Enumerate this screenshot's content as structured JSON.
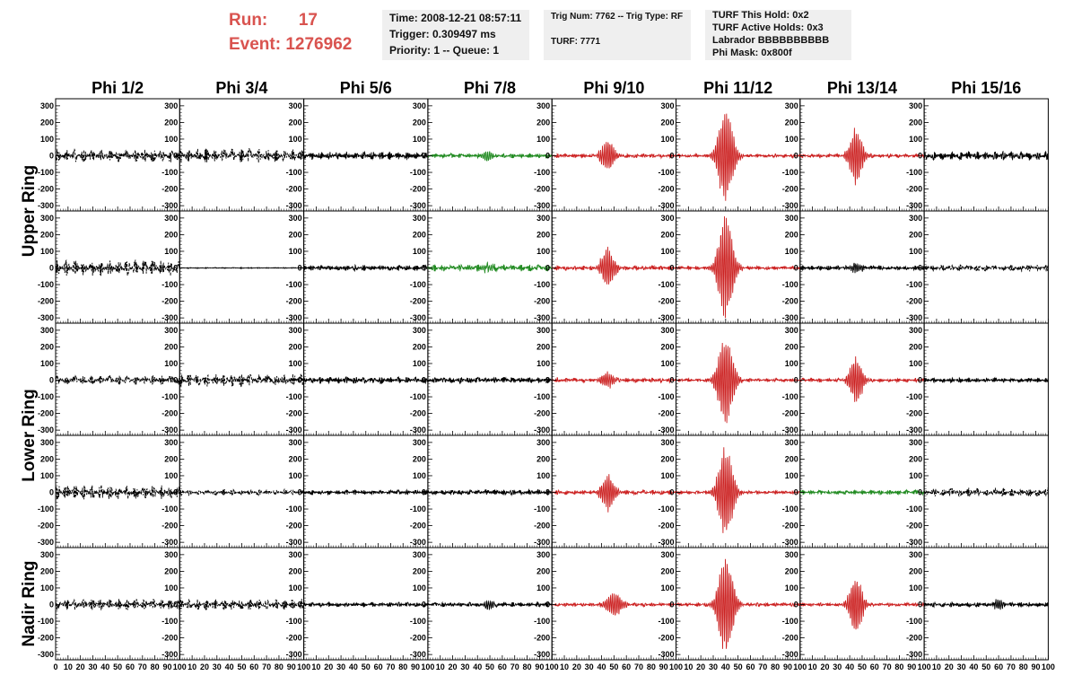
{
  "header": {
    "run_label": "Run:",
    "run_value": "17",
    "event_label": "Event:",
    "event_value": "1276962",
    "time": "Time: 2008-12-21 08:57:11",
    "trigger": "Trigger: 0.309497 ms",
    "priority": "Priority: 1 -- Queue: 1",
    "trig_num": "Trig Num: 7762 -- Trig Type: RF",
    "turf": "TURF: 7771",
    "turf_hold": "TURF This Hold: 0x2",
    "turf_active": "TURF Active Holds: 0x3",
    "labrador": "Labrador BBBBBBBBBB",
    "phi_mask": "Phi Mask: 0x800f"
  },
  "chart_data": {
    "type": "line",
    "columns": [
      "Phi 1/2",
      "Phi 3/4",
      "Phi 5/6",
      "Phi 7/8",
      "Phi 9/10",
      "Phi 11/12",
      "Phi 13/14",
      "Phi 15/16"
    ],
    "rows": [
      "Upper Ring",
      "Upper Ring",
      "Lower Ring",
      "Lower Ring",
      "Nadir Ring"
    ],
    "row_groups": [
      {
        "label": "Upper Ring",
        "rows": [
          0,
          1
        ]
      },
      {
        "label": "Lower Ring",
        "rows": [
          2,
          3
        ]
      },
      {
        "label": "Nadir Ring",
        "rows": [
          4
        ]
      }
    ],
    "xlim": [
      0,
      100
    ],
    "ylim": [
      -310,
      310
    ],
    "y_ticks": [
      -300,
      -200,
      -100,
      0,
      100,
      200,
      300
    ],
    "x_ticks": [
      0,
      10,
      20,
      30,
      40,
      50,
      60,
      70,
      80,
      90,
      100
    ],
    "colors": {
      "normal": "#000000",
      "triggered": "#cc2222",
      "masked": "#228b22"
    },
    "waveforms": [
      [
        {
          "amp": 40,
          "burst": 0,
          "center": 50,
          "width": 25,
          "dashed": true,
          "color": "normal"
        },
        {
          "amp": 45,
          "burst": 0,
          "center": 55,
          "width": 25,
          "dashed": true,
          "color": "normal"
        },
        {
          "amp": 25,
          "burst": 0,
          "center": 50,
          "width": 25,
          "dashed": false,
          "color": "normal"
        },
        {
          "amp": 15,
          "burst": 40,
          "center": 48,
          "width": 4,
          "dashed": false,
          "color": "masked"
        },
        {
          "amp": 15,
          "burst": 100,
          "center": 45,
          "width": 6,
          "dashed": false,
          "color": "triggered"
        },
        {
          "amp": 12,
          "burst": 310,
          "center": 40,
          "width": 7,
          "dashed": false,
          "color": "triggered"
        },
        {
          "amp": 12,
          "burst": 180,
          "center": 45,
          "width": 6,
          "dashed": false,
          "color": "triggered"
        },
        {
          "amp": 28,
          "burst": 0,
          "center": 50,
          "width": 25,
          "dashed": false,
          "color": "normal"
        }
      ],
      [
        {
          "amp": 50,
          "burst": 0,
          "center": 50,
          "width": 25,
          "dashed": true,
          "color": "normal"
        },
        {
          "amp": 3,
          "burst": 0,
          "center": 50,
          "width": 25,
          "dashed": false,
          "color": "normal"
        },
        {
          "amp": 18,
          "burst": 0,
          "center": 50,
          "width": 25,
          "dashed": false,
          "color": "normal"
        },
        {
          "amp": 22,
          "burst": 25,
          "center": 48,
          "width": 6,
          "dashed": false,
          "color": "masked"
        },
        {
          "amp": 15,
          "burst": 120,
          "center": 45,
          "width": 6,
          "dashed": false,
          "color": "triggered"
        },
        {
          "amp": 12,
          "burst": 320,
          "center": 40,
          "width": 7,
          "dashed": false,
          "color": "triggered"
        },
        {
          "amp": 15,
          "burst": 30,
          "center": 45,
          "width": 5,
          "dashed": false,
          "color": "normal"
        },
        {
          "amp": 22,
          "burst": 0,
          "center": 50,
          "width": 25,
          "dashed": true,
          "color": "normal"
        }
      ],
      [
        {
          "amp": 30,
          "burst": 0,
          "center": 50,
          "width": 25,
          "dashed": true,
          "color": "normal"
        },
        {
          "amp": 40,
          "burst": 0,
          "center": 50,
          "width": 25,
          "dashed": true,
          "color": "normal"
        },
        {
          "amp": 22,
          "burst": 0,
          "center": 50,
          "width": 25,
          "dashed": false,
          "color": "normal"
        },
        {
          "amp": 20,
          "burst": 0,
          "center": 50,
          "width": 25,
          "dashed": false,
          "color": "normal"
        },
        {
          "amp": 15,
          "burst": 50,
          "center": 45,
          "width": 6,
          "dashed": false,
          "color": "triggered"
        },
        {
          "amp": 12,
          "burst": 290,
          "center": 40,
          "width": 7,
          "dashed": false,
          "color": "triggered"
        },
        {
          "amp": 12,
          "burst": 150,
          "center": 45,
          "width": 6,
          "dashed": false,
          "color": "triggered"
        },
        {
          "amp": 15,
          "burst": 0,
          "center": 50,
          "width": 25,
          "dashed": false,
          "color": "normal"
        }
      ],
      [
        {
          "amp": 45,
          "burst": 0,
          "center": 55,
          "width": 25,
          "dashed": true,
          "color": "normal"
        },
        {
          "amp": 18,
          "burst": 0,
          "center": 50,
          "width": 25,
          "dashed": true,
          "color": "normal"
        },
        {
          "amp": 15,
          "burst": 0,
          "center": 50,
          "width": 25,
          "dashed": false,
          "color": "normal"
        },
        {
          "amp": 18,
          "burst": 0,
          "center": 50,
          "width": 25,
          "dashed": false,
          "color": "normal"
        },
        {
          "amp": 15,
          "burst": 110,
          "center": 45,
          "width": 6,
          "dashed": false,
          "color": "triggered"
        },
        {
          "amp": 12,
          "burst": 280,
          "center": 40,
          "width": 7,
          "dashed": false,
          "color": "triggered"
        },
        {
          "amp": 15,
          "burst": 0,
          "center": 50,
          "width": 25,
          "dashed": false,
          "color": "masked"
        },
        {
          "amp": 28,
          "burst": 0,
          "center": 50,
          "width": 25,
          "dashed": true,
          "color": "normal"
        }
      ],
      [
        {
          "amp": 35,
          "burst": 0,
          "center": 50,
          "width": 25,
          "dashed": true,
          "color": "normal"
        },
        {
          "amp": 35,
          "burst": 0,
          "center": 55,
          "width": 25,
          "dashed": true,
          "color": "normal"
        },
        {
          "amp": 15,
          "burst": 0,
          "center": 50,
          "width": 25,
          "dashed": false,
          "color": "normal"
        },
        {
          "amp": 15,
          "burst": 30,
          "center": 50,
          "width": 4,
          "dashed": false,
          "color": "normal"
        },
        {
          "amp": 12,
          "burst": 80,
          "center": 50,
          "width": 7,
          "dashed": false,
          "color": "triggered"
        },
        {
          "amp": 12,
          "burst": 320,
          "center": 40,
          "width": 7,
          "dashed": false,
          "color": "triggered"
        },
        {
          "amp": 12,
          "burst": 190,
          "center": 45,
          "width": 6,
          "dashed": false,
          "color": "triggered"
        },
        {
          "amp": 15,
          "burst": 35,
          "center": 60,
          "width": 4,
          "dashed": false,
          "color": "normal"
        }
      ]
    ]
  }
}
